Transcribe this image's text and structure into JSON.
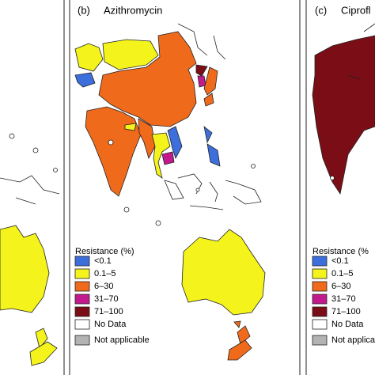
{
  "panels": [
    {
      "label": "(b)",
      "title": "Azithromycin",
      "legend": {
        "title": "Resistance (%)",
        "items": [
          "<0.1",
          "0.1–5",
          "6–30",
          "31–70",
          "71–100",
          "No Data",
          "Not applicable"
        ],
        "colors": [
          "#3d6fdc",
          "#f4f41c",
          "#f06a1c",
          "#c2198c",
          "#7b0d16",
          "#ffffff",
          "#b3b3b3"
        ]
      }
    },
    {
      "label": "(c)",
      "title": "Ciprofl",
      "legend": {
        "title": "Resistance (%",
        "items": [
          "<0.1",
          "0.1–5",
          "6–30",
          "31–70",
          "71–100",
          "No Data",
          "Not applica"
        ],
        "colors": [
          "#3d6fdc",
          "#f4f41c",
          "#f06a1c",
          "#c2198c",
          "#7b0d16",
          "#ffffff",
          "#b3b3b3"
        ]
      }
    }
  ]
}
